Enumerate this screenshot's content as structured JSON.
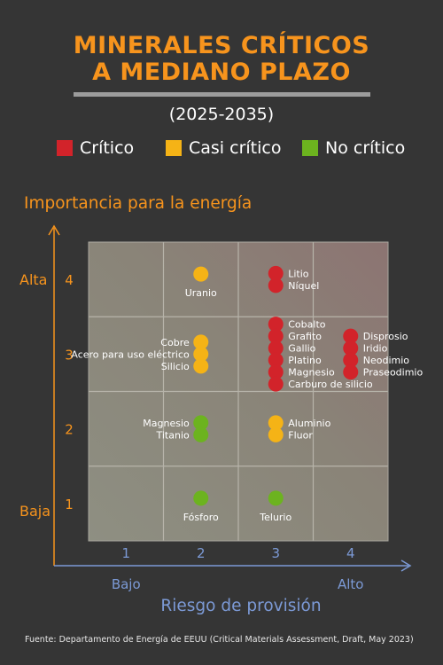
{
  "title_line1": "MINERALES CRÍTICOS",
  "title_line2": "A MEDIANO PLAZO",
  "period": "(2025-2035)",
  "legend": [
    {
      "label": "Crítico",
      "color": "#d2232a"
    },
    {
      "label": "Casi crítico",
      "color": "#f5b316"
    },
    {
      "label": "No crítico",
      "color": "#6cb31f"
    }
  ],
  "source": "Fuente: Departamento de Energía de EEUU (Critical Materials Assessment, Draft, May 2023)",
  "chart_data": {
    "type": "scatter",
    "xlabel": "Riesgo de provisión",
    "ylabel": "Importancia para la energía",
    "x_ticks": [
      "1",
      "2",
      "3",
      "4"
    ],
    "y_ticks": [
      "1",
      "2",
      "3",
      "4"
    ],
    "x_end_labels": [
      "Bajo",
      "Alto"
    ],
    "y_end_labels": [
      "Baja",
      "Alta"
    ],
    "xlim": [
      0.5,
      4.5
    ],
    "ylim": [
      0.5,
      4.5
    ],
    "colors": {
      "critico": "#d2232a",
      "casi": "#f5b316",
      "no": "#6cb31f"
    },
    "groups": [
      {
        "x": 2,
        "y": 4,
        "status": "casi",
        "label_side": "below",
        "labels": [
          "Uranio"
        ]
      },
      {
        "x": 3,
        "y": 4,
        "status": "critico",
        "label_side": "right",
        "labels": [
          "Litio",
          "Níquel"
        ]
      },
      {
        "x": 2,
        "y": 3,
        "status": "casi",
        "label_side": "left",
        "labels": [
          "Cobre",
          "Acero para uso eléctrico",
          "Silicio"
        ]
      },
      {
        "x": 3,
        "y": 3,
        "status": "critico",
        "label_side": "right",
        "labels": [
          "Cobalto",
          "Grafito",
          "Gallio",
          "Platino",
          "Magnesio",
          "Carburo de silicio"
        ]
      },
      {
        "x": 4,
        "y": 3,
        "status": "critico",
        "label_side": "right",
        "labels": [
          "Disprosio",
          "Iridio",
          "Neodimio",
          "Praseodimio"
        ]
      },
      {
        "x": 2,
        "y": 2,
        "status": "no",
        "label_side": "left",
        "labels": [
          "Magnesio",
          "Titanio"
        ]
      },
      {
        "x": 3,
        "y": 2,
        "status": "casi",
        "label_side": "right",
        "labels": [
          "Aluminio",
          "Fluor"
        ]
      },
      {
        "x": 2,
        "y": 1,
        "status": "no",
        "label_side": "below",
        "labels": [
          "Fósforo"
        ]
      },
      {
        "x": 3,
        "y": 1,
        "status": "no",
        "label_side": "below",
        "labels": [
          "Telurio"
        ]
      }
    ]
  }
}
